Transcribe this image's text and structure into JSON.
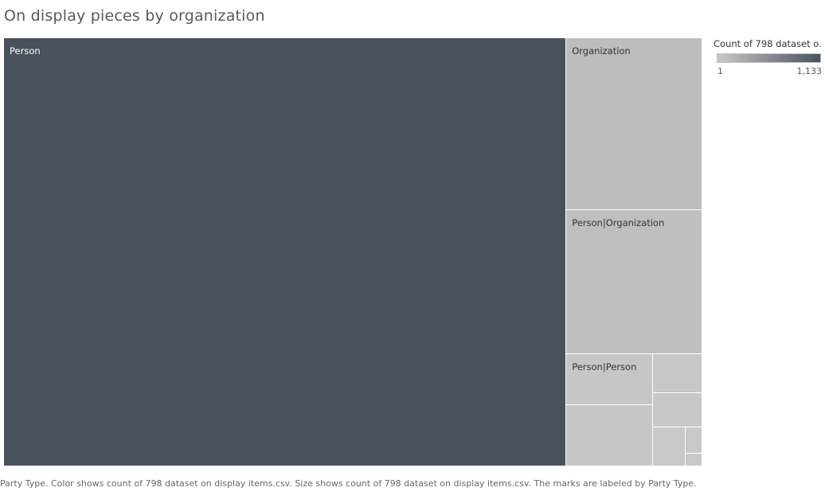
{
  "title": "On display pieces by organization",
  "caption": "Party Type.  Color shows count of 798 dataset on display items.csv.  Size shows count of 798 dataset on display items.csv.  The marks are labeled by Party Type.",
  "legend": {
    "title": "Count of 798 dataset o..",
    "min_label": "1",
    "max_label": "1,133",
    "colors": {
      "low": "#c8c9c7",
      "high": "#4a515e"
    }
  },
  "chart_data": {
    "type": "treemap",
    "title": "On display pieces by organization",
    "size_measure": "Count of 798 dataset on display items.csv",
    "color_measure": "Count of 798 dataset on display items.csv",
    "color_range": [
      1,
      1133
    ],
    "items": [
      {
        "label": "Person",
        "value": 1133
      },
      {
        "label": "Organization",
        "value": 110
      },
      {
        "label": "Person|Organization",
        "value": 92
      },
      {
        "label": "",
        "value": 25
      },
      {
        "label": "Person|Person",
        "value": 21
      },
      {
        "label": "",
        "value": 9
      },
      {
        "label": "",
        "value": 8
      },
      {
        "label": "",
        "value": 6
      },
      {
        "label": "",
        "value": 2
      },
      {
        "label": "",
        "value": 1
      }
    ]
  }
}
